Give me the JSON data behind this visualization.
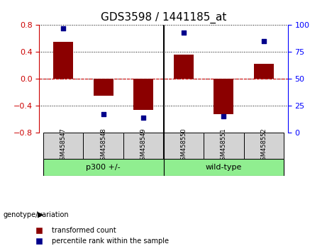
{
  "title": "GDS3598 / 1441185_at",
  "samples": [
    "GSM458547",
    "GSM458548",
    "GSM458549",
    "GSM458550",
    "GSM458551",
    "GSM458552"
  ],
  "bar_values": [
    0.55,
    -0.25,
    -0.46,
    0.36,
    -0.52,
    0.22
  ],
  "percentile_values": [
    97,
    17,
    14,
    93,
    15,
    85
  ],
  "bar_color": "#8B0000",
  "dot_color": "#00008B",
  "ylim_left": [
    -0.8,
    0.8
  ],
  "ylim_right": [
    0,
    100
  ],
  "yticks_left": [
    -0.8,
    -0.4,
    0,
    0.4,
    0.8
  ],
  "yticks_right": [
    0,
    25,
    50,
    75,
    100
  ],
  "background_color": "#ffffff",
  "genotype_label": "genotype/variation",
  "legend_bar_label": "transformed count",
  "legend_dot_label": "percentile rank within the sample",
  "header_bg": "#d3d3d3",
  "group_bg": "#90EE90",
  "group1_label": "p300 +/-",
  "group2_label": "wild-type"
}
